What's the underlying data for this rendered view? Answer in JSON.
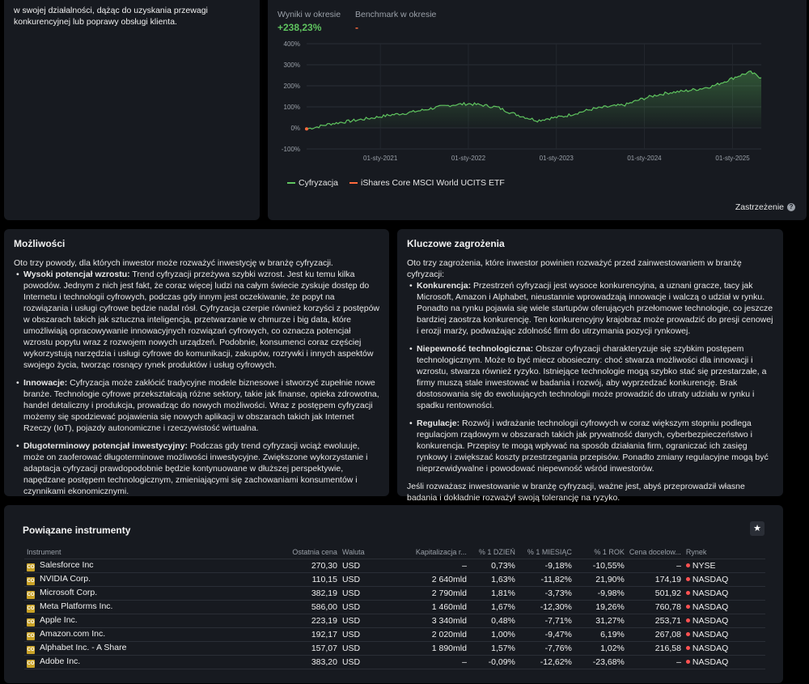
{
  "top_left": {
    "text": "w swojej działalności, dążąc do uzyskania przewagi konkurencyjnej lub poprawy obsługi klienta."
  },
  "chart_panel": {
    "stats": {
      "results_label": "Wyniki w okresie",
      "results_value": "+238,23%",
      "benchmark_label": "Benchmark w okresie",
      "benchmark_value": "-"
    },
    "legend": [
      {
        "name": "Cyfryzacja",
        "color": "#5fc45f"
      },
      {
        "name": "iShares Core MSCI World UCITS ETF",
        "color": "#ff6a3d"
      }
    ],
    "disclaimer": "Zastrzeżenie",
    "help_icon": "?"
  },
  "chart_data": {
    "type": "area",
    "title": "",
    "xlabel": "",
    "ylabel": "",
    "y_ticks": [
      "400%",
      "300%",
      "200%",
      "100%",
      "0%",
      "-100%"
    ],
    "ylim": [
      -100,
      400
    ],
    "x_ticks": [
      "01-sty-2021",
      "01-sty-2022",
      "01-sty-2023",
      "01-sty-2024",
      "01-sty-2025"
    ],
    "x_range": [
      "2020-03-01",
      "2025-04-30"
    ],
    "grid": true,
    "series": [
      {
        "name": "Cyfryzacja",
        "color": "#5fc45f",
        "x": [
          "2020-03-01",
          "2020-04-15",
          "2020-06-01",
          "2020-08-01",
          "2020-10-01",
          "2020-12-01",
          "2021-02-15",
          "2021-04-15",
          "2021-06-15",
          "2021-08-15",
          "2021-11-01",
          "2022-01-01",
          "2022-03-01",
          "2022-05-01",
          "2022-07-01",
          "2022-09-01",
          "2022-10-15",
          "2022-12-01",
          "2023-02-01",
          "2023-04-01",
          "2023-06-01",
          "2023-08-01",
          "2023-10-15",
          "2023-12-15",
          "2024-02-15",
          "2024-04-15",
          "2024-06-15",
          "2024-08-15",
          "2024-10-15",
          "2024-12-15",
          "2025-02-01",
          "2025-03-15",
          "2025-04-30"
        ],
        "values": [
          -5,
          5,
          18,
          28,
          38,
          48,
          62,
          70,
          82,
          96,
          110,
          115,
          108,
          98,
          70,
          48,
          35,
          45,
          55,
          72,
          90,
          100,
          110,
          135,
          155,
          168,
          175,
          185,
          200,
          228,
          250,
          265,
          238
        ]
      }
    ]
  },
  "opportunities": {
    "title": "Możliwości",
    "intro": "Oto trzy powody, dla których inwestor może rozważyć inwestycję w branżę cyfryzacji.",
    "items": [
      {
        "bold": "Wysoki potencjał wzrostu:",
        "text": " Trend cyfryzacji przeżywa szybki wzrost. Jest ku temu kilka powodów. Jednym z nich jest fakt, że coraz więcej ludzi na całym świecie zyskuje dostęp do Internetu i technologii cyfrowych, podczas gdy innym jest oczekiwanie, że popyt na rozwiązania i usługi cyfrowe będzie nadal rósł. Cyfryzacja czerpie również korzyści z postępów w obszarach takich jak sztuczna inteligencja, przetwarzanie w chmurze i big data, które umożliwiają opracowywanie innowacyjnych rozwiązań cyfrowych, co oznacza potencjał wzrostu popytu wraz z rozwojem nowych urządzeń. Podobnie, konsumenci coraz częściej wykorzystują narzędzia i usługi cyfrowe do komunikacji, zakupów, rozrywki i innych aspektów swojego życia, tworząc rosnący rynek produktów i usług cyfrowych."
      },
      {
        "bold": "Innowacje:",
        "text": " Cyfryzacja może zakłócić tradycyjne modele biznesowe i stworzyć zupełnie nowe branże. Technologie cyfrowe przekształcają różne sektory, takie jak finanse, opieka zdrowotna, handel detaliczny i produkcja, prowadząc do nowych możliwości. Wraz z postępem cyfryzacji możemy się spodziewać pojawienia się nowych aplikacji w obszarach takich jak Internet Rzeczy (IoT), pojazdy autonomiczne i rzeczywistość wirtualna."
      },
      {
        "bold": "Długoterminowy potencjał inwestycyjny:",
        "text": " Podczas gdy trend cyfryzacji wciąż ewoluuje, może on zaoferować długoterminowe możliwości inwestycyjne. Zwiększone wykorzystanie i adaptacja cyfryzacji prawdopodobnie będzie kontynuowane w dłuższej perspektywie, napędzane postępem technologicznym, zmieniającymi się zachowaniami konsumentów i czynnikami ekonomicznymi."
      }
    ]
  },
  "threats": {
    "title": "Kluczowe zagrożenia",
    "intro": "Oto trzy zagrożenia, które inwestor powinien rozważyć przed zainwestowaniem w branżę cyfryzacji:",
    "items": [
      {
        "bold": "Konkurencja:",
        "text": " Przestrzeń cyfryzacji jest wysoce konkurencyjna, a uznani gracze, tacy jak Microsoft, Amazon i Alphabet, nieustannie wprowadzają innowacje i walczą o udział w rynku. Ponadto na rynku pojawia się wiele startupów oferujących przełomowe technologie, co jeszcze bardziej zaostrza konkurencję. Ten konkurencyjny krajobraz może prowadzić do presji cenowej i erozji marży, podważając zdolność firm do utrzymania pozycji rynkowej."
      },
      {
        "bold": "Niepewność technologiczna:",
        "text": " Obszar cyfryzacji charakteryzuje się szybkim postępem technologicznym. Może to być miecz obosieczny: choć stwarza możliwości dla innowacji i wzrostu, stwarza również ryzyko. Istniejące technologie mogą szybko stać się przestarzałe, a firmy muszą stale inwestować w badania i rozwój, aby wyprzedzać konkurencję. Brak dostosowania się do ewoluujących technologii może prowadzić do utraty udziału w rynku i spadku rentowności."
      },
      {
        "bold": "Regulacje:",
        "text": " Rozwój i wdrażanie technologii cyfrowych w coraz większym stopniu podlega regulacjom rządowym w obszarach takich jak prywatność danych, cyberbezpieczeństwo i konkurencja. Przepisy te mogą wpływać na sposób działania firm, ograniczać ich zasięg rynkowy i zwiększać koszty przestrzegania przepisów. Ponadto zmiany regulacyjne mogą być nieprzewidywalne i powodować niepewność wśród inwestorów."
      }
    ],
    "outro": "Jeśli rozważasz inwestowanie w branżę cyfryzacji, ważne jest, abyś przeprowadził własne badania i dokładnie rozważył swoją tolerancję na ryzyko."
  },
  "instruments": {
    "title": "Powiązane instrumenty",
    "star_icon": "★",
    "ticker_icon_text": "CO",
    "headers": [
      "Instrument",
      "Ostatnia cena",
      "Waluta",
      "Kapitalizacja r...",
      "% 1 DZIEŃ",
      "% 1 MIESIĄC",
      "% 1 ROK",
      "Cena docelow...",
      "Rynek"
    ],
    "rows": [
      {
        "name": "Salesforce Inc",
        "price": "270,30",
        "currency": "USD",
        "cap": "–",
        "d1": "0,73%",
        "d1_sign": "pos",
        "m1": "-9,18%",
        "m1_sign": "neg",
        "y1": "-10,55%",
        "y1_sign": "neg",
        "target": "–",
        "market": "NYSE"
      },
      {
        "name": "NVIDIA Corp.",
        "price": "110,15",
        "currency": "USD",
        "cap": "2 640mld",
        "d1": "1,63%",
        "d1_sign": "pos",
        "m1": "-11,82%",
        "m1_sign": "neg",
        "y1": "21,90%",
        "y1_sign": "pos",
        "target": "174,19",
        "market": "NASDAQ"
      },
      {
        "name": "Microsoft Corp.",
        "price": "382,19",
        "currency": "USD",
        "cap": "2 790mld",
        "d1": "1,81%",
        "d1_sign": "pos",
        "m1": "-3,73%",
        "m1_sign": "neg",
        "y1": "-9,98%",
        "y1_sign": "neg",
        "target": "501,92",
        "market": "NASDAQ"
      },
      {
        "name": "Meta Platforms Inc.",
        "price": "586,00",
        "currency": "USD",
        "cap": "1 460mld",
        "d1": "1,67%",
        "d1_sign": "pos",
        "m1": "-12,30%",
        "m1_sign": "neg",
        "y1": "19,26%",
        "y1_sign": "pos",
        "target": "760,78",
        "market": "NASDAQ"
      },
      {
        "name": "Apple Inc.",
        "price": "223,19",
        "currency": "USD",
        "cap": "3 340mld",
        "d1": "0,48%",
        "d1_sign": "pos",
        "m1": "-7,71%",
        "m1_sign": "neg",
        "y1": "31,27%",
        "y1_sign": "pos",
        "target": "253,71",
        "market": "NASDAQ"
      },
      {
        "name": "Amazon.com Inc.",
        "price": "192,17",
        "currency": "USD",
        "cap": "2 020mld",
        "d1": "1,00%",
        "d1_sign": "pos",
        "m1": "-9,47%",
        "m1_sign": "neg",
        "y1": "6,19%",
        "y1_sign": "pos",
        "target": "267,08",
        "market": "NASDAQ"
      },
      {
        "name": "Alphabet Inc. - A Share",
        "price": "157,07",
        "currency": "USD",
        "cap": "1 890mld",
        "d1": "1,57%",
        "d1_sign": "pos",
        "m1": "-7,76%",
        "m1_sign": "neg",
        "y1": "1,02%",
        "y1_sign": "pos",
        "target": "216,58",
        "market": "NASDAQ"
      },
      {
        "name": "Adobe Inc.",
        "price": "383,20",
        "currency": "USD",
        "cap": "–",
        "d1": "-0,09%",
        "d1_sign": "neg",
        "m1": "-12,62%",
        "m1_sign": "neg",
        "y1": "-23,68%",
        "y1_sign": "neg",
        "target": "–",
        "market": "NASDAQ"
      }
    ]
  }
}
